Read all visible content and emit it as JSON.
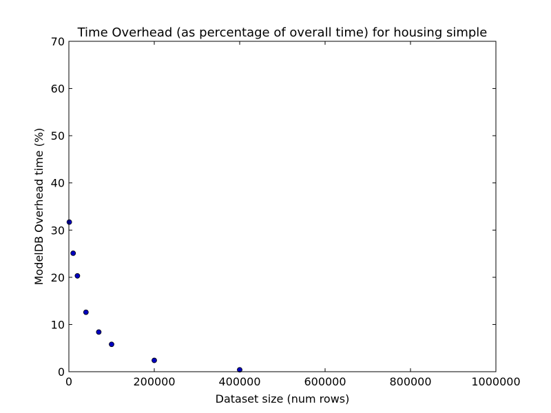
{
  "chart_data": {
    "type": "scatter",
    "title": "Time Overhead (as percentage of overall time) for housing simple",
    "xlabel": "Dataset size (num rows)",
    "ylabel": "ModelDB Overhead time (%)",
    "xlim": [
      0,
      1000000
    ],
    "ylim": [
      0,
      70
    ],
    "xticks": [
      0,
      200000,
      400000,
      600000,
      800000,
      1000000
    ],
    "xtick_labels": [
      "0",
      "200000",
      "400000",
      "600000",
      "800000",
      "1000000"
    ],
    "yticks": [
      0,
      10,
      20,
      30,
      40,
      50,
      60,
      70
    ],
    "ytick_labels": [
      "0",
      "10",
      "20",
      "30",
      "40",
      "50",
      "60",
      "70"
    ],
    "grid": false,
    "colors": {
      "marker_fill": "#0000bf",
      "marker_edge": "#000000",
      "axes": "#000000"
    },
    "series": [
      {
        "x": [
          1000,
          10000,
          20000,
          40000,
          70000,
          100000,
          200000,
          400000
        ],
        "y": [
          31.7,
          25.1,
          20.3,
          12.6,
          8.4,
          5.8,
          2.4,
          0.4
        ]
      }
    ]
  }
}
